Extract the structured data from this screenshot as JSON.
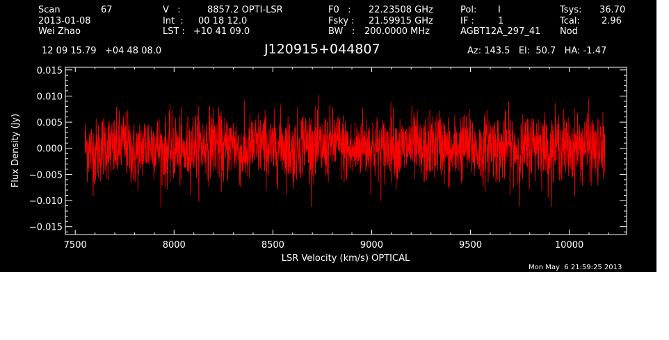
{
  "header": {
    "row1": {
      "scan_label": "Scan",
      "scan_value": "67",
      "vel_label": "V   :",
      "vel_value": "8857.2 OPTI-LSR",
      "f0_label": "F0   :",
      "f0_value": "22.23508 GHz",
      "pol_label": "Pol:",
      "pol_value": "I",
      "tsys_label": "Tsys:",
      "tsys_value": "36.70"
    },
    "row2": {
      "date": "2013-01-08",
      "int_label": "Int  :",
      "int_value": "00 18 12.0",
      "fsky_label": "Fsky :",
      "fsky_value": "21.59915 GHz",
      "if_label": "IF :",
      "if_value": "1",
      "tcal_label": "Tcal:",
      "tcal_value": "2.96"
    },
    "row3": {
      "observer": "Wei Zhao",
      "lst_label": "LST :",
      "lst_value": "+10 41 09.0",
      "bw_label": "BW   :",
      "bw_value": "200.0000 MHz",
      "project": "AGBT12A_297_41",
      "procedure": "Nod"
    },
    "coords": "12 09 15.79   +04 48 08.0",
    "source": "J120915+044807",
    "pointing": "Az: 143.5   El:  50.7   HA: -1.47",
    "timestamp": "Mon May  6 21:59:25 2013"
  },
  "chart_data": {
    "type": "line",
    "title": "J120915+044807",
    "xlabel": "LSR Velocity (km/s) OPTICAL",
    "ylabel": "Flux Density (Jy)",
    "xlim": [
      7450,
      10290
    ],
    "ylim": [
      -0.0165,
      0.0155
    ],
    "x_ticks": [
      7500,
      8000,
      8500,
      9000,
      9500,
      10000
    ],
    "x_tick_labels": [
      "7500",
      "8000",
      "8500",
      "9000",
      "9500",
      "10000"
    ],
    "y_ticks": [
      -0.015,
      -0.01,
      -0.005,
      0.0,
      0.005,
      0.01,
      0.015
    ],
    "y_tick_labels": [
      "−0.015",
      "−0.010",
      "−0.005",
      "0.000",
      "0.005",
      "0.010",
      "0.015"
    ],
    "grid": false,
    "background": "#000000",
    "axis_color": "#ffffff",
    "series": [
      {
        "color": "#ff0000",
        "description": "noise-dominated spectrum, mean ~0.000 Jy, typical envelope about +/-0.005 Jy, peaks to about +0.013 / -0.011 Jy",
        "x": [
          7550,
          7600,
          7650,
          7700,
          7750,
          7800,
          7850,
          7900,
          7950,
          8000,
          8050,
          8100,
          8150,
          8200,
          8250,
          8300,
          8350,
          8400,
          8450,
          8500,
          8550,
          8600,
          8650,
          8700,
          8750,
          8800,
          8850,
          8900,
          8950,
          9000,
          9050,
          9100,
          9150,
          9200,
          9250,
          9300,
          9350,
          9400,
          9450,
          9500,
          9550,
          9600,
          9650,
          9700,
          9750,
          9800,
          9850,
          9900,
          9950,
          10000,
          10050,
          10100,
          10150,
          10180
        ],
        "y": [
          0.0005,
          -0.001,
          0.0008,
          -0.0003,
          0.0012,
          -0.0015,
          0.0006,
          0.001,
          -0.0008,
          0.0002,
          -0.0012,
          0.0009,
          0.0004,
          0.0015,
          -0.0006,
          0.0011,
          -0.0014,
          0.0003,
          0.0008,
          -0.0004,
          0.001,
          -0.0009,
          0.0014,
          0.0006,
          -0.0002,
          0.0012,
          0.0005,
          -0.0011,
          0.0009,
          0.0003,
          -0.0007,
          0.0013,
          -0.0005,
          0.0008,
          -0.001,
          0.0004,
          0.0011,
          -0.0012,
          0.0006,
          0.0002,
          -0.0008,
          0.001,
          -0.0003,
          0.0007,
          -0.0011,
          0.0005,
          0.0012,
          -0.0006,
          0.0009,
          -0.0002,
          0.0004,
          0.0008,
          -0.0009,
          0.0001
        ]
      }
    ]
  }
}
